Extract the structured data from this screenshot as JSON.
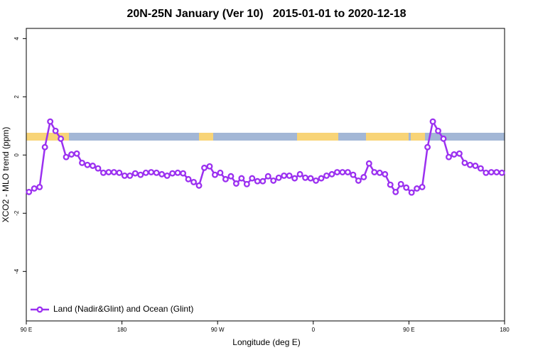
{
  "chart_data": {
    "type": "line",
    "title": "20N-25N January (Ver 10)   2015-01-01 to 2020-12-18",
    "x_label": "Longitude (deg E)",
    "y_label": "XCO2 - MLO trend (ppm)",
    "x": [
      92.5,
      97.5,
      102.5,
      107.5,
      112.5,
      117.5,
      122.5,
      127.5,
      132.5,
      137.5,
      142.5,
      147.5,
      152.5,
      157.5,
      162.5,
      167.5,
      172.5,
      177.5,
      182.5,
      187.5,
      192.5,
      197.5,
      202.5,
      207.5,
      212.5,
      217.5,
      222.5,
      227.5,
      232.5,
      237.5,
      242.5,
      247.5,
      252.5,
      257.5,
      262.5,
      267.5,
      272.5,
      277.5,
      282.5,
      287.5,
      292.5,
      297.5,
      302.5,
      307.5,
      312.5,
      317.5,
      322.5,
      327.5,
      332.5,
      337.5,
      342.5,
      347.5,
      352.5,
      357.5,
      362.5,
      367.5,
      372.5,
      377.5,
      382.5,
      387.5,
      392.5,
      397.5,
      402.5,
      407.5,
      412.5,
      417.5,
      422.5,
      427.5,
      432.5,
      437.5,
      442.5,
      447.5,
      452.5,
      457.5,
      462.5,
      467.5,
      472.5,
      477.5,
      482.5,
      487.5,
      492.5,
      497.5,
      502.5,
      507.5,
      512.5,
      517.5,
      522.5,
      527.5,
      532.5,
      537.5
    ],
    "series": [
      {
        "name": "Land (Nadir&Glint) and Ocean (Glint)",
        "color": "#9b30f0",
        "values": [
          -1.27,
          -1.15,
          -1.1,
          0.27,
          1.15,
          0.83,
          0.56,
          -0.07,
          0.02,
          0.05,
          -0.27,
          -0.34,
          -0.37,
          -0.46,
          -0.61,
          -0.59,
          -0.59,
          -0.61,
          -0.71,
          -0.71,
          -0.63,
          -0.68,
          -0.61,
          -0.59,
          -0.61,
          -0.66,
          -0.71,
          -0.63,
          -0.61,
          -0.63,
          -0.83,
          -0.93,
          -1.05,
          -0.44,
          -0.39,
          -0.68,
          -0.61,
          -0.83,
          -0.73,
          -0.98,
          -0.8,
          -1.0,
          -0.8,
          -0.9,
          -0.9,
          -0.73,
          -0.88,
          -0.78,
          -0.71,
          -0.71,
          -0.8,
          -0.66,
          -0.78,
          -0.8,
          -0.88,
          -0.8,
          -0.71,
          -0.66,
          -0.59,
          -0.59,
          -0.59,
          -0.68,
          -0.88,
          -0.76,
          -0.29,
          -0.59,
          -0.61,
          -0.66,
          -1.02,
          -1.27,
          -1.0,
          -1.12,
          -1.29,
          -1.15,
          -1.1,
          0.27,
          1.15,
          0.83,
          0.56,
          -0.07,
          0.02,
          0.05,
          -0.27,
          -0.34,
          -0.37,
          -0.46,
          -0.61,
          -0.59,
          -0.59,
          -0.61
        ]
      }
    ],
    "xlim": [
      90,
      540
    ],
    "xticks": [
      {
        "value": 90,
        "label": "90 E"
      },
      180,
      {
        "value": 270,
        "label": "90 W"
      },
      {
        "value": 360,
        "label": "0"
      },
      {
        "value": 450,
        "label": "90 E"
      },
      {
        "value": 540,
        "label": "180"
      }
    ],
    "ylim": [
      -5.7,
      4.35
    ],
    "yticks": [
      -4,
      -2,
      0,
      2,
      4
    ],
    "legend": "bottomleft"
  }
}
